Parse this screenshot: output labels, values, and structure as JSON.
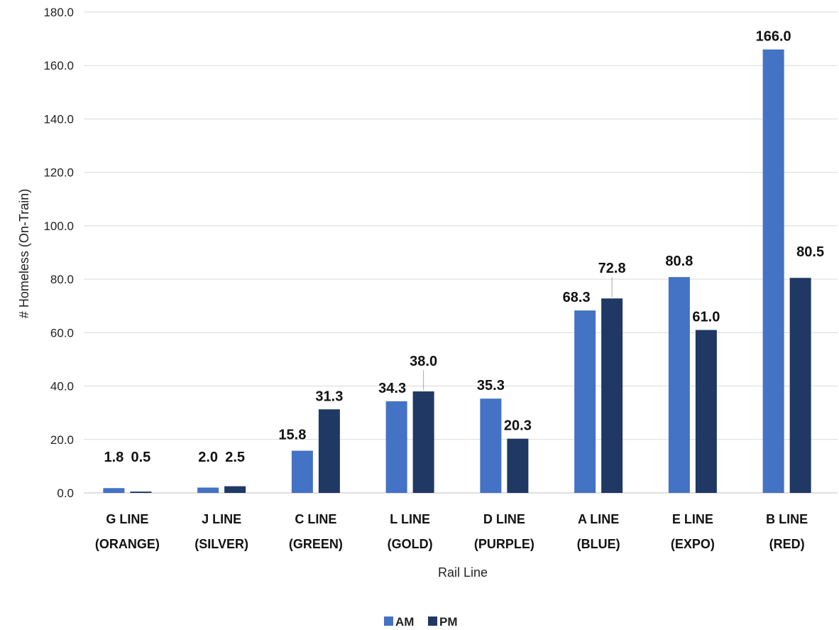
{
  "chart_data": {
    "type": "bar",
    "title": "",
    "xlabel": "Rail Line",
    "ylabel": "# Homeless (On-Train)",
    "ylim": [
      0,
      180
    ],
    "yticks": [
      "0.0",
      "20.0",
      "40.0",
      "60.0",
      "80.0",
      "100.0",
      "120.0",
      "140.0",
      "160.0",
      "180.0"
    ],
    "categories": [
      [
        "G LINE",
        "(ORANGE)"
      ],
      [
        "J LINE",
        "(SILVER)"
      ],
      [
        "C LINE",
        "(GREEN)"
      ],
      [
        "L LINE",
        "(GOLD)"
      ],
      [
        "D LINE",
        "(PURPLE)"
      ],
      [
        "A LINE",
        "(BLUE)"
      ],
      [
        "E LINE",
        "(EXPO)"
      ],
      [
        "B LINE",
        "(RED)"
      ]
    ],
    "series": [
      {
        "name": "AM",
        "color": "#4472c4",
        "values": [
          1.8,
          2.0,
          15.8,
          34.3,
          35.3,
          68.3,
          80.8,
          166.0
        ],
        "labels": [
          "1.8",
          "2.0",
          "15.8",
          "34.3",
          "35.3",
          "68.3",
          "80.8",
          "166.0"
        ]
      },
      {
        "name": "PM",
        "color": "#203864",
        "values": [
          0.5,
          2.5,
          31.3,
          38.0,
          20.3,
          72.8,
          61.0,
          80.5
        ],
        "labels": [
          "0.5",
          "2.5",
          "31.3",
          "38.0",
          "20.3",
          "72.8",
          "61.0",
          "80.5"
        ]
      }
    ],
    "grid": true,
    "legend": "bottom"
  }
}
